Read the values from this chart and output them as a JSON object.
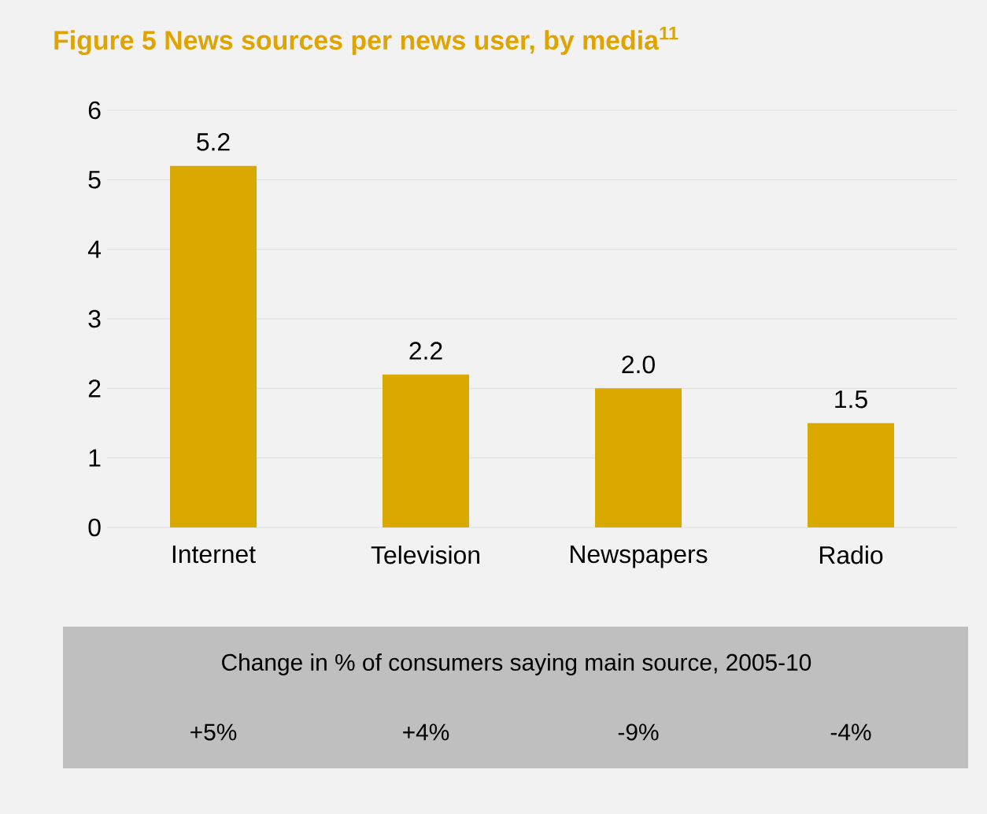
{
  "chart_data": {
    "type": "bar",
    "title": "Figure 5 News sources per news user, by media$^{11}$",
    "categories": [
      "Internet",
      "Television",
      "Newspapers",
      "Radio"
    ],
    "values": [
      5.2,
      2.2,
      2.0,
      1.5
    ],
    "color": "#d9a900",
    "ylim": [
      0,
      6
    ],
    "yticks": [
      0,
      1,
      2,
      3,
      4,
      5,
      6
    ],
    "grid": "y",
    "value_labels": [
      "5.2",
      "2.2",
      "2.0",
      "1.5"
    ],
    "annotations": [
      "Change in % of consumers saying main source, 2005-10",
      "+5%",
      "+4%",
      "-9%",
      "-4%"
    ]
  }
}
